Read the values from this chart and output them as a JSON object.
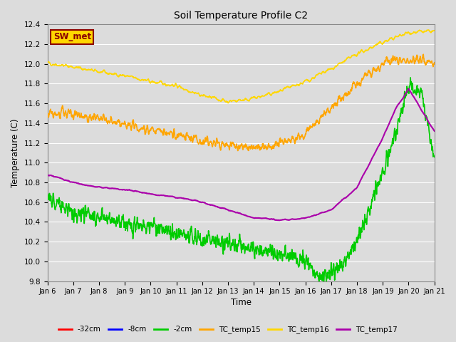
{
  "title": "Soil Temperature Profile C2",
  "xlabel": "Time",
  "ylabel": "Temperature (C)",
  "ylim": [
    9.8,
    12.4
  ],
  "xlim": [
    0,
    15
  ],
  "x_tick_labels": [
    "Jan 6",
    "Jan 7",
    "Jan 8",
    "Jan 9",
    "Jan 10",
    "Jan 11",
    "Jan 12",
    "Jan 13",
    "Jan 14",
    "Jan 15",
    "Jan 16",
    "Jan 17",
    "Jan 18",
    "Jan 19",
    "Jan 20",
    "Jan 21"
  ],
  "yticks": [
    9.8,
    10.0,
    10.2,
    10.4,
    10.6,
    10.8,
    11.0,
    11.2,
    11.4,
    11.6,
    11.8,
    12.0,
    12.2,
    12.4
  ],
  "legend_label": "SW_met",
  "legend_box_color": "#FFD700",
  "legend_box_text_color": "#8B0000",
  "series": {
    "-32cm": {
      "color": "#FF0000",
      "linewidth": 1.2
    },
    "-8cm": {
      "color": "#0000FF",
      "linewidth": 1.2
    },
    "-2cm": {
      "color": "#00CC00",
      "linewidth": 1.2
    },
    "TC_temp15": {
      "color": "#FFA500",
      "linewidth": 1.2
    },
    "TC_temp16": {
      "color": "#FFD700",
      "linewidth": 1.2
    },
    "TC_temp17": {
      "color": "#AA00AA",
      "linewidth": 1.5
    }
  },
  "background_color": "#DCDCDC",
  "plot_bg_color": "#DCDCDC",
  "grid_color": "#FFFFFF",
  "figsize": [
    6.4,
    4.8
  ],
  "dpi": 100
}
